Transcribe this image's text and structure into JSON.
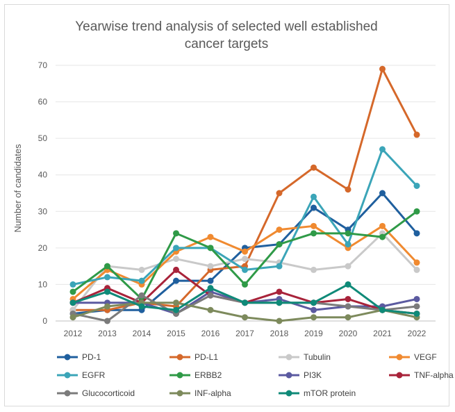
{
  "chart_data": {
    "type": "line",
    "title_lines": [
      "Yearwise trend analysis of selected well established",
      "cancer targets"
    ],
    "xlabel": "",
    "ylabel": "Number of candidates",
    "ylim": [
      0,
      70
    ],
    "yticks": [
      "0",
      "10",
      "20",
      "30",
      "40",
      "50",
      "60",
      "70"
    ],
    "ytick_values": [
      0,
      10,
      20,
      30,
      40,
      50,
      60,
      70
    ],
    "grid": true,
    "legend_position": "bottom",
    "categories": [
      "2012",
      "2013",
      "2014",
      "2015",
      "2016",
      "2017",
      "2018",
      "2019",
      "2020",
      "2021",
      "2022"
    ],
    "series": [
      {
        "name": "PD-1",
        "color": "#1f5f9e",
        "values": [
          2,
          3,
          3,
          11,
          11,
          20,
          21,
          31,
          25,
          35,
          24
        ]
      },
      {
        "name": "PD-L1",
        "color": "#d5682a",
        "values": [
          3,
          3,
          5,
          4,
          14,
          15,
          35,
          42,
          36,
          69,
          51
        ]
      },
      {
        "name": "Tubulin",
        "color": "#c9c9c9",
        "values": [
          3,
          15,
          14,
          17,
          15,
          17,
          16,
          14,
          15,
          24,
          14
        ]
      },
      {
        "name": "VEGF",
        "color": "#f08a30",
        "values": [
          6,
          14,
          10,
          19,
          23,
          19,
          25,
          26,
          20,
          26,
          16
        ]
      },
      {
        "name": "EGFR",
        "color": "#3ba5b8",
        "values": [
          10,
          12,
          11,
          20,
          20,
          14,
          15,
          34,
          21,
          47,
          37
        ]
      },
      {
        "name": "ERBB2",
        "color": "#2f9a47",
        "values": [
          8,
          15,
          6,
          24,
          20,
          10,
          21,
          24,
          24,
          23,
          30
        ]
      },
      {
        "name": "PI3K",
        "color": "#5b5aa0",
        "values": [
          5,
          5,
          5,
          2,
          8,
          5,
          6,
          3,
          4,
          4,
          6
        ]
      },
      {
        "name": "TNF-alpha",
        "color": "#a8233a",
        "values": [
          5,
          9,
          5,
          14,
          7,
          5,
          8,
          5,
          6,
          3,
          2
        ]
      },
      {
        "name": "Glucocorticoid",
        "color": "#7b7b7b",
        "values": [
          2,
          0,
          7,
          2,
          7,
          5,
          5,
          5,
          4,
          3,
          4
        ]
      },
      {
        "name": "INF-alpha",
        "color": "#7d8a5c",
        "values": [
          1,
          4,
          5,
          5,
          3,
          1,
          0,
          1,
          1,
          3,
          1
        ]
      },
      {
        "name": "mTOR protein",
        "color": "#0f8a78",
        "values": [
          5,
          8,
          4,
          3,
          9,
          5,
          5,
          5,
          10,
          3,
          2
        ]
      }
    ]
  }
}
